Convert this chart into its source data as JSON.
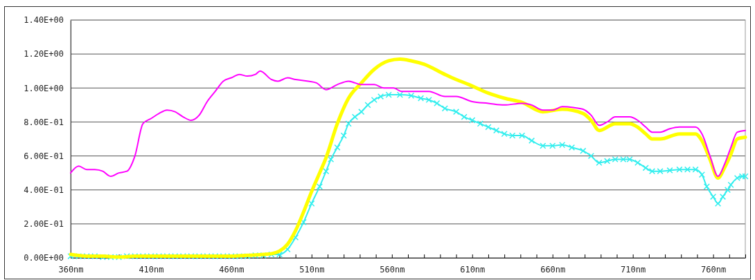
{
  "chart_data": {
    "type": "line",
    "xlim": [
      360,
      780
    ],
    "ylim": [
      0,
      1.4
    ],
    "xticks": [
      {
        "value": 360,
        "label": "360nm"
      },
      {
        "value": 370,
        "label": null
      },
      {
        "value": 380,
        "label": null
      },
      {
        "value": 390,
        "label": null
      },
      {
        "value": 400,
        "label": null
      },
      {
        "value": 410,
        "label": "410nm"
      },
      {
        "value": 420,
        "label": null
      },
      {
        "value": 430,
        "label": null
      },
      {
        "value": 440,
        "label": null
      },
      {
        "value": 450,
        "label": null
      },
      {
        "value": 460,
        "label": "460nm"
      },
      {
        "value": 470,
        "label": null
      },
      {
        "value": 480,
        "label": null
      },
      {
        "value": 490,
        "label": null
      },
      {
        "value": 500,
        "label": null
      },
      {
        "value": 510,
        "label": "510nm"
      },
      {
        "value": 520,
        "label": null
      },
      {
        "value": 530,
        "label": null
      },
      {
        "value": 540,
        "label": null
      },
      {
        "value": 550,
        "label": null
      },
      {
        "value": 560,
        "label": "560nm"
      },
      {
        "value": 570,
        "label": null
      },
      {
        "value": 580,
        "label": null
      },
      {
        "value": 590,
        "label": null
      },
      {
        "value": 600,
        "label": null
      },
      {
        "value": 610,
        "label": "610nm"
      },
      {
        "value": 620,
        "label": null
      },
      {
        "value": 630,
        "label": null
      },
      {
        "value": 640,
        "label": null
      },
      {
        "value": 650,
        "label": null
      },
      {
        "value": 660,
        "label": "660nm"
      },
      {
        "value": 670,
        "label": null
      },
      {
        "value": 680,
        "label": null
      },
      {
        "value": 690,
        "label": null
      },
      {
        "value": 700,
        "label": null
      },
      {
        "value": 710,
        "label": "710nm"
      },
      {
        "value": 720,
        "label": null
      },
      {
        "value": 730,
        "label": null
      },
      {
        "value": 740,
        "label": null
      },
      {
        "value": 750,
        "label": null
      },
      {
        "value": 760,
        "label": "760nm"
      },
      {
        "value": 770,
        "label": null
      },
      {
        "value": 780,
        "label": null
      }
    ],
    "yticks": [
      {
        "value": 0,
        "label": "0.00E+00"
      },
      {
        "value": 0.2,
        "label": "2.00E-01"
      },
      {
        "value": 0.4,
        "label": "4.00E-01"
      },
      {
        "value": 0.6,
        "label": "6.00E-01"
      },
      {
        "value": 0.8,
        "label": "8.00E-01"
      },
      {
        "value": 1.0,
        "label": "1.00E+00"
      },
      {
        "value": 1.2,
        "label": "1.20E+00"
      },
      {
        "value": 1.4,
        "label": "1.40E+00"
      }
    ],
    "grid": "y",
    "marker": "none",
    "line_style": "solid",
    "series": [
      {
        "color": "#ff00ff",
        "x": [
          360,
          365,
          370,
          375,
          380,
          385,
          390,
          395,
          400,
          405,
          410,
          415,
          420,
          425,
          430,
          435,
          440,
          445,
          450,
          455,
          460,
          465,
          470,
          475,
          478,
          485,
          489,
          495,
          500,
          508,
          513,
          519,
          526,
          533,
          541,
          549,
          555,
          561,
          566,
          572,
          583,
          593,
          600,
          610,
          620,
          630,
          641,
          647,
          654,
          660,
          666,
          673,
          679,
          684,
          689,
          694,
          699,
          708,
          713,
          718,
          722,
          727,
          733,
          739,
          749,
          753,
          758,
          763,
          767,
          771,
          775,
          780
        ],
        "values": [
          0.5,
          0.54,
          0.52,
          0.52,
          0.51,
          0.48,
          0.5,
          0.51,
          0.6,
          0.79,
          0.82,
          0.85,
          0.87,
          0.86,
          0.83,
          0.81,
          0.84,
          0.92,
          0.98,
          1.04,
          1.06,
          1.08,
          1.07,
          1.08,
          1.1,
          1.05,
          1.04,
          1.06,
          1.05,
          1.04,
          1.03,
          0.99,
          1.02,
          1.04,
          1.02,
          1.02,
          1.0,
          1.0,
          0.98,
          0.98,
          0.98,
          0.95,
          0.95,
          0.92,
          0.91,
          0.9,
          0.91,
          0.9,
          0.87,
          0.87,
          0.89,
          0.885,
          0.875,
          0.84,
          0.78,
          0.8,
          0.83,
          0.83,
          0.81,
          0.77,
          0.74,
          0.74,
          0.76,
          0.77,
          0.77,
          0.73,
          0.6,
          0.48,
          0.55,
          0.65,
          0.74,
          0.75
        ]
      },
      {
        "color": "#ffff00",
        "x": [
          360,
          370,
          380,
          390,
          400,
          410,
          420,
          430,
          440,
          450,
          460,
          470,
          480,
          485,
          490,
          495,
          500,
          505,
          510,
          515,
          519,
          526,
          533,
          541,
          549,
          558,
          565,
          572,
          580,
          593,
          600,
          608,
          620,
          630,
          641,
          654,
          666,
          679,
          684,
          689,
          699,
          708,
          713,
          718,
          722,
          727,
          739,
          749,
          753,
          758,
          763,
          767,
          771,
          775,
          780
        ],
        "values": [
          0.02,
          0.01,
          0.01,
          0.005,
          0.01,
          0.01,
          0.01,
          0.01,
          0.01,
          0.01,
          0.01,
          0.015,
          0.02,
          0.025,
          0.04,
          0.08,
          0.16,
          0.27,
          0.39,
          0.5,
          0.59,
          0.79,
          0.94,
          1.03,
          1.11,
          1.16,
          1.17,
          1.16,
          1.14,
          1.08,
          1.05,
          1.02,
          0.97,
          0.94,
          0.915,
          0.86,
          0.875,
          0.85,
          0.81,
          0.75,
          0.79,
          0.79,
          0.77,
          0.73,
          0.7,
          0.7,
          0.73,
          0.73,
          0.69,
          0.58,
          0.47,
          0.53,
          0.61,
          0.7,
          0.71
        ]
      },
      {
        "color": "#33eeee",
        "marker": "cross",
        "x": [
          360,
          365,
          370,
          375,
          380,
          385,
          390,
          395,
          400,
          405,
          410,
          415,
          420,
          425,
          430,
          435,
          440,
          445,
          450,
          455,
          460,
          465,
          470,
          475,
          480,
          485,
          490,
          495,
          500,
          505,
          510,
          515,
          519,
          522,
          526,
          530,
          533,
          537,
          541,
          545,
          549,
          553,
          558,
          565,
          572,
          578,
          583,
          588,
          593,
          600,
          605,
          610,
          615,
          620,
          625,
          630,
          635,
          641,
          647,
          654,
          660,
          666,
          672,
          679,
          684,
          689,
          694,
          699,
          704,
          708,
          713,
          718,
          722,
          727,
          733,
          739,
          744,
          749,
          753,
          756,
          760,
          763,
          766,
          769,
          771,
          775,
          778,
          780
        ],
        "values": [
          0.01,
          0.01,
          0.01,
          0.01,
          0.005,
          0.005,
          0.005,
          0.01,
          0.01,
          0.01,
          0.01,
          0.01,
          0.01,
          0.01,
          0.01,
          0.01,
          0.01,
          0.01,
          0.01,
          0.01,
          0.01,
          0.01,
          0.01,
          0.015,
          0.015,
          0.02,
          0.02,
          0.05,
          0.12,
          0.21,
          0.32,
          0.42,
          0.51,
          0.58,
          0.65,
          0.72,
          0.79,
          0.83,
          0.86,
          0.9,
          0.93,
          0.95,
          0.96,
          0.96,
          0.955,
          0.94,
          0.93,
          0.91,
          0.88,
          0.86,
          0.83,
          0.81,
          0.79,
          0.77,
          0.75,
          0.73,
          0.72,
          0.72,
          0.69,
          0.66,
          0.66,
          0.665,
          0.65,
          0.63,
          0.6,
          0.56,
          0.57,
          0.58,
          0.58,
          0.58,
          0.56,
          0.53,
          0.51,
          0.51,
          0.515,
          0.52,
          0.52,
          0.52,
          0.49,
          0.42,
          0.36,
          0.32,
          0.36,
          0.4,
          0.43,
          0.47,
          0.48,
          0.48
        ]
      }
    ]
  }
}
